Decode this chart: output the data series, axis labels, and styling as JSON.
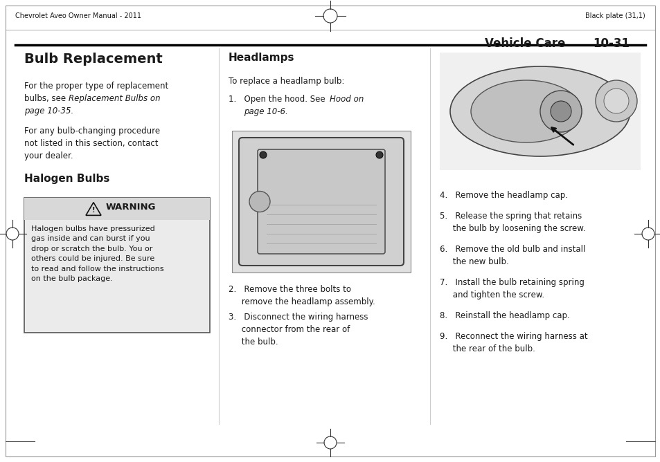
{
  "page_bg": "#ffffff",
  "header_left": "Chevrolet Aveo Owner Manual - 2011",
  "header_right": "Black plate (31,1)",
  "section_header": "Vehicle Care",
  "section_number": "10-31",
  "title_left": "Bulb Replacement",
  "para1a": "For the proper type of replacement\nbulbs, see ",
  "para1b": "Replacement Bulbs on\npage 10-35.",
  "para2": "For any bulb-changing procedure\nnot listed in this section, contact\nyour dealer.",
  "subtitle_halogen": "Halogen Bulbs",
  "warning_header": "WARNING",
  "warning_text": "Halogen bulbs have pressurized\ngas inside and can burst if you\ndrop or scratch the bulb. You or\nothers could be injured. Be sure\nto read and follow the instructions\non the bulb package.",
  "title_headlamps": "Headlamps",
  "headlamps_intro": "To replace a headlamp bulb:",
  "step1a": "1.   Open the hood. See ",
  "step1b": "Hood on\n     page 10-6.",
  "step2": "2.   Remove the three bolts to\n     remove the headlamp assembly.",
  "step3": "3.   Disconnect the wiring harness\n     connector from the rear of\n     the bulb.",
  "step4": "4.   Remove the headlamp cap.",
  "step5": "5.   Release the spring that retains\n     the bulb by loosening the screw.",
  "step6": "6.   Remove the old bulb and install\n     the new bulb.",
  "step7": "7.   Install the bulb retaining spring\n     and tighten the screw.",
  "step8": "8.   Reinstall the headlamp cap.",
  "step9": "9.   Reconnect the wiring harness at\n     the rear of the bulb.",
  "text_color": "#1a1a1a",
  "warning_bg": "#d8d8d8",
  "warning_body_bg": "#ebebeb",
  "warn_border": "#555555"
}
